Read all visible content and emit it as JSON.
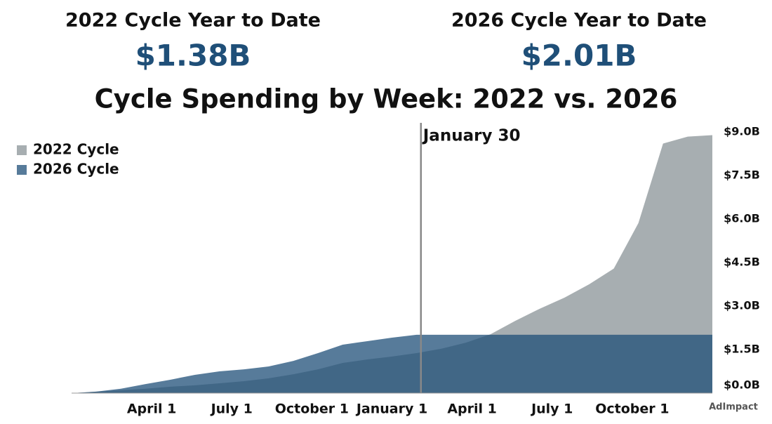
{
  "summary": [
    {
      "label": "2022 Cycle Year to Date",
      "value": "$1.38B"
    },
    {
      "label": "2026 Cycle Year to Date",
      "value": "$2.01B"
    }
  ],
  "watermark": "AdImpact",
  "chart_data": {
    "type": "area",
    "title": "Cycle Spending by Week: 2022 vs. 2026",
    "x": [
      0,
      4,
      8,
      12,
      16,
      20,
      24,
      28,
      32,
      36,
      40,
      44,
      48,
      52,
      56,
      60,
      64,
      68,
      72,
      76,
      80,
      84,
      88,
      92,
      96,
      100,
      104
    ],
    "xlim": [
      0,
      104
    ],
    "xticks": [
      {
        "value": 13,
        "label": "April 1"
      },
      {
        "value": 26,
        "label": "July 1"
      },
      {
        "value": 39,
        "label": "October 1"
      },
      {
        "value": 52,
        "label": "January 1"
      },
      {
        "value": 65,
        "label": "April 1"
      },
      {
        "value": 78,
        "label": "July 1"
      },
      {
        "value": 91,
        "label": "October 1"
      }
    ],
    "ylim": [
      0,
      9
    ],
    "yticks": [
      {
        "value": 0,
        "label": "$0.0B"
      },
      {
        "value": 1.5,
        "label": "$1.5B"
      },
      {
        "value": 3,
        "label": "$3.0B"
      },
      {
        "value": 4.5,
        "label": "$4.5B"
      },
      {
        "value": 6,
        "label": "$6.0B"
      },
      {
        "value": 7.5,
        "label": "$7.5B"
      },
      {
        "value": 9,
        "label": "$9.0B"
      }
    ],
    "legend": "top-left",
    "series": [
      {
        "name": "2022 Cycle",
        "color": "#a7aeb1",
        "values": [
          0,
          0.05,
          0.1,
          0.15,
          0.22,
          0.27,
          0.34,
          0.41,
          0.51,
          0.65,
          0.82,
          1.04,
          1.16,
          1.26,
          1.38,
          1.53,
          1.74,
          2.03,
          2.49,
          2.91,
          3.29,
          3.75,
          4.29,
          5.86,
          8.6,
          8.84,
          8.89
        ]
      },
      {
        "name": "2026 Cycle",
        "color": "#1f4f78",
        "values": [
          0,
          0.05,
          0.15,
          0.31,
          0.46,
          0.63,
          0.75,
          0.82,
          0.92,
          1.11,
          1.38,
          1.67,
          1.79,
          1.91,
          2.01,
          2.01,
          2.01,
          2.01,
          2.01,
          2.01,
          2.01,
          2.01,
          2.01,
          2.01,
          2.01,
          2.01,
          2.01
        ]
      }
    ],
    "annotations": [
      {
        "text": "January 30",
        "x": 56.7
      }
    ]
  }
}
